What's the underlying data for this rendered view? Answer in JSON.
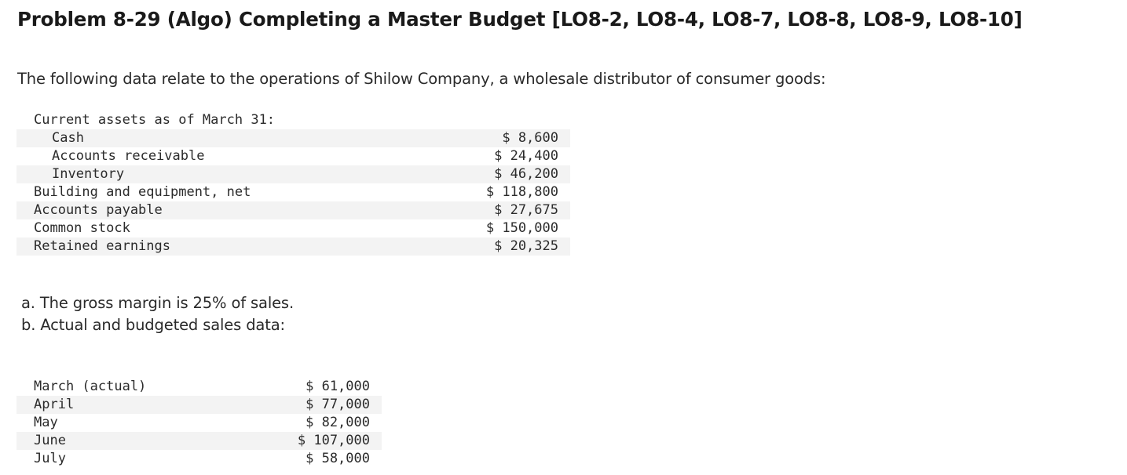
{
  "title": "Problem 8-29 (Algo) Completing a Master Budget [LO8-2, LO8-4, LO8-7, LO8-8, LO8-9, LO8-10]",
  "intro": "The following data relate to the operations of Shilow Company, a wholesale distributor of consumer goods:",
  "assets_table": {
    "rows": [
      {
        "label": "Current assets as of March 31:",
        "value": "",
        "indent": false
      },
      {
        "label": "Cash",
        "value": "$ 8,600",
        "indent": true
      },
      {
        "label": "Accounts receivable",
        "value": "$ 24,400",
        "indent": true
      },
      {
        "label": "Inventory",
        "value": "$ 46,200",
        "indent": true
      },
      {
        "label": "Building and equipment, net",
        "value": "$ 118,800",
        "indent": false
      },
      {
        "label": "Accounts payable",
        "value": "$ 27,675",
        "indent": false
      },
      {
        "label": "Common stock",
        "value": "$ 150,000",
        "indent": false
      },
      {
        "label": "Retained earnings",
        "value": "$ 20,325",
        "indent": false
      }
    ]
  },
  "notes": {
    "a": "a. The gross margin is 25% of sales.",
    "b": "b. Actual and budgeted sales data:"
  },
  "sales_table": {
    "rows": [
      {
        "label": "March (actual)",
        "value": "$ 61,000"
      },
      {
        "label": "April",
        "value": "$ 77,000"
      },
      {
        "label": "May",
        "value": "$ 82,000"
      },
      {
        "label": "June",
        "value": "$ 107,000"
      },
      {
        "label": "July",
        "value": "$ 58,000"
      }
    ]
  }
}
